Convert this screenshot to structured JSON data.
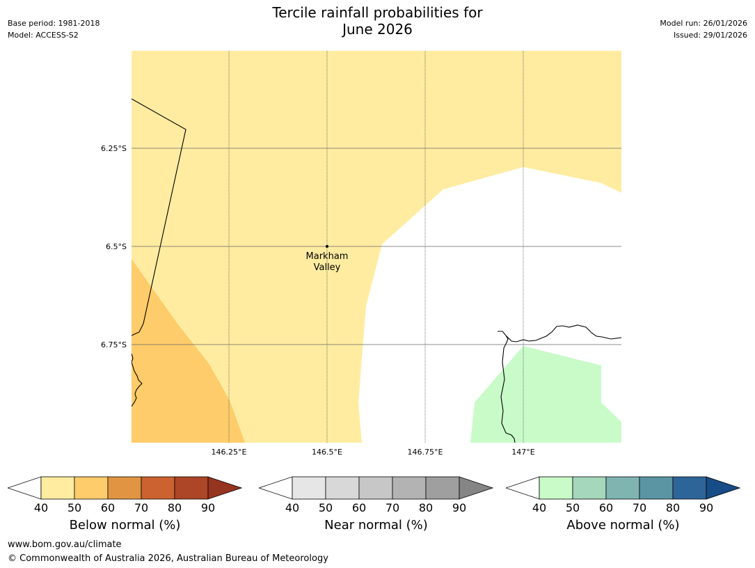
{
  "header": {
    "title_line1": "Tercile rainfall probabilities for",
    "title_line2": "June 2026",
    "base_period": "Base period: 1981-2018",
    "model": "Model: ACCESS-S2",
    "model_run": "Model run: 26/01/2026",
    "issued": "Issued: 29/01/2026"
  },
  "map": {
    "lat_labels": [
      "6.25°S",
      "6.5°S",
      "6.75°S"
    ],
    "lon_labels": [
      "146.25°E",
      "146.5°E",
      "146.75°E",
      "147°E"
    ],
    "place": {
      "name_line1": "Markham",
      "name_line2": "Valley"
    },
    "colors": {
      "below_40_50": "#ffeca1",
      "below_50_60": "#fecc6a",
      "above_40_50": "#c9fbc9",
      "background": "#ffffff"
    }
  },
  "colorbars": [
    {
      "label": "Below normal (%)",
      "ticks": [
        "40",
        "50",
        "60",
        "70",
        "80",
        "90"
      ],
      "colors": [
        "#ffeca1",
        "#fecc6a",
        "#e19542",
        "#cb6230",
        "#ad4527",
        "#953420"
      ]
    },
    {
      "label": "Near normal (%)",
      "ticks": [
        "40",
        "50",
        "60",
        "70",
        "80",
        "90"
      ],
      "colors": [
        "#e6e6e6",
        "#d8d8d8",
        "#c7c7c7",
        "#b3b3b3",
        "#9f9f9f",
        "#858585"
      ]
    },
    {
      "label": "Above normal (%)",
      "ticks": [
        "40",
        "50",
        "60",
        "70",
        "80",
        "90"
      ],
      "colors": [
        "#c9fbc9",
        "#a4d7bb",
        "#7fb4b0",
        "#5b94a3",
        "#2e6599",
        "#174c86"
      ]
    }
  ],
  "footer": {
    "url": "www.bom.gov.au/climate",
    "copyright": "© Commonwealth of Australia 2026, Australian Bureau of Meteorology"
  }
}
